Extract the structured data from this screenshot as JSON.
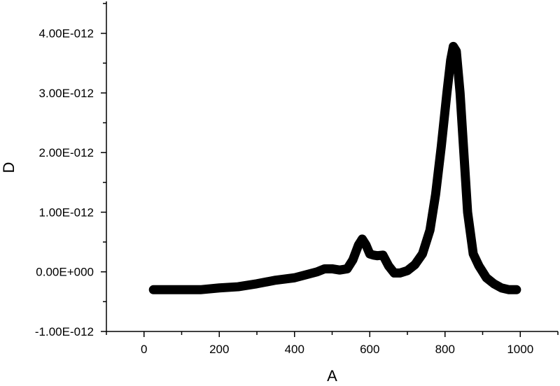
{
  "chart_data": {
    "type": "line",
    "title": "",
    "xlabel": "A",
    "ylabel": "D",
    "xlim": [
      -100,
      1100
    ],
    "ylim": [
      -1e-12,
      4.5e-12
    ],
    "x_ticks": [
      0,
      200,
      400,
      600,
      800,
      1000
    ],
    "x_tick_labels": [
      "0",
      "200",
      "400",
      "600",
      "800",
      "1000"
    ],
    "y_ticks": [
      -1e-12,
      0,
      1e-12,
      2e-12,
      3e-12,
      4e-12
    ],
    "y_tick_labels": [
      "-1.00E-012",
      "0.00E+000",
      "1.00E-012",
      "2.00E-012",
      "3.00E-012",
      "4.00E-012"
    ],
    "grid": false,
    "series": [
      {
        "color": "#000000",
        "x": [
          25,
          50,
          100,
          150,
          200,
          250,
          300,
          350,
          400,
          430,
          460,
          480,
          500,
          520,
          540,
          555,
          570,
          580,
          590,
          600,
          610,
          620,
          635,
          650,
          665,
          680,
          700,
          720,
          740,
          760,
          775,
          790,
          805,
          815,
          822,
          830,
          840,
          850,
          860,
          875,
          890,
          910,
          930,
          950,
          970,
          990
        ],
        "y": [
          -3e-13,
          -3e-13,
          -3e-13,
          -3e-13,
          -2.7e-13,
          -2.5e-13,
          -2e-13,
          -1.4e-13,
          -1e-13,
          -5e-14,
          0.0,
          5e-14,
          5e-14,
          3e-14,
          5e-14,
          2e-13,
          4.5e-13,
          5.5e-13,
          4.5e-13,
          3e-13,
          2.8e-13,
          2.7e-13,
          2.8e-13,
          1e-13,
          -2e-14,
          -2e-14,
          2e-14,
          1.2e-13,
          3e-13,
          7e-13,
          1.3e-12,
          2.1e-12,
          3e-12,
          3.55e-12,
          3.78e-12,
          3.7e-12,
          3e-12,
          2e-12,
          1e-12,
          3e-13,
          1e-13,
          -1e-13,
          -2e-13,
          -2.7e-13,
          -3e-13,
          -3e-13
        ]
      }
    ]
  }
}
